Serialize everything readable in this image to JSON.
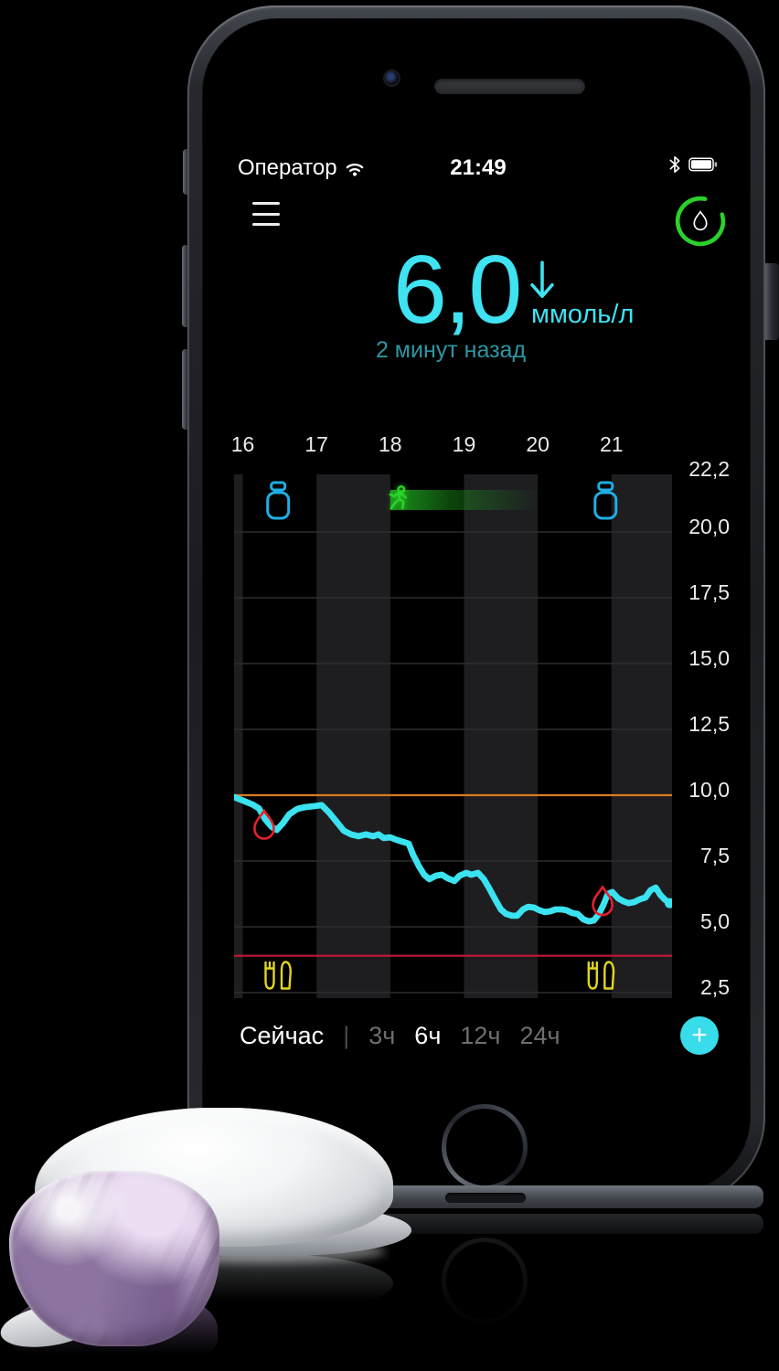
{
  "status_bar": {
    "carrier": "Оператор",
    "time": "21:49",
    "wifi_icon": "wifi-icon",
    "bluetooth_icon": "bluetooth-icon",
    "battery_icon": "battery-icon"
  },
  "header": {
    "menu_icon": "hamburger-menu-icon",
    "sensor_icon": "droplet-progress-icon",
    "sensor_progress_color": "#2BD12B"
  },
  "reading": {
    "value": "6,0",
    "unit": "ммоль/л",
    "trend": "down",
    "ago": "2 минут назад",
    "value_color": "#3FE3F2",
    "ago_color": "#2D96A3"
  },
  "chart_data": {
    "type": "line",
    "x_ticks": [
      "16",
      "17",
      "18",
      "19",
      "20",
      "21"
    ],
    "y_ticks": [
      "22,2",
      "20,0",
      "17,5",
      "15,0",
      "12,5",
      "10,0",
      "7,5",
      "5,0",
      "2,5"
    ],
    "xlim": [
      15.88,
      21.83
    ],
    "ylim": [
      2.2,
      22.2
    ],
    "grid": {
      "hlines": [
        20,
        17.5,
        15,
        12.5,
        7.5,
        5,
        2.5
      ],
      "shaded_columns": [
        [
          15.88,
          16
        ],
        [
          17,
          18
        ],
        [
          19,
          20
        ],
        [
          21,
          21.83
        ]
      ]
    },
    "high_limit": {
      "value": 10.0,
      "color": "#DD7A1E"
    },
    "low_limit": {
      "value": 3.9,
      "color": "#C2173B"
    },
    "series": [
      {
        "name": "glucose",
        "color": "#3BE2F0",
        "points": [
          [
            15.88,
            9.93
          ],
          [
            16.0,
            9.8
          ],
          [
            16.13,
            9.65
          ],
          [
            16.22,
            9.5
          ],
          [
            16.3,
            9.1
          ],
          [
            16.39,
            8.8
          ],
          [
            16.46,
            8.68
          ],
          [
            16.54,
            8.92
          ],
          [
            16.63,
            9.27
          ],
          [
            16.74,
            9.48
          ],
          [
            16.85,
            9.55
          ],
          [
            16.96,
            9.58
          ],
          [
            17.07,
            9.62
          ],
          [
            17.17,
            9.34
          ],
          [
            17.27,
            9.0
          ],
          [
            17.37,
            8.65
          ],
          [
            17.47,
            8.51
          ],
          [
            17.57,
            8.44
          ],
          [
            17.67,
            8.51
          ],
          [
            17.77,
            8.44
          ],
          [
            17.84,
            8.51
          ],
          [
            17.91,
            8.37
          ],
          [
            18.0,
            8.4
          ],
          [
            18.09,
            8.3
          ],
          [
            18.17,
            8.23
          ],
          [
            18.25,
            8.16
          ],
          [
            18.31,
            7.74
          ],
          [
            18.39,
            7.29
          ],
          [
            18.46,
            6.98
          ],
          [
            18.53,
            6.81
          ],
          [
            18.62,
            6.94
          ],
          [
            18.7,
            6.98
          ],
          [
            18.78,
            6.84
          ],
          [
            18.87,
            6.74
          ],
          [
            18.94,
            6.94
          ],
          [
            19.03,
            7.05
          ],
          [
            19.1,
            6.98
          ],
          [
            19.19,
            7.05
          ],
          [
            19.27,
            6.81
          ],
          [
            19.35,
            6.42
          ],
          [
            19.43,
            6.0
          ],
          [
            19.5,
            5.66
          ],
          [
            19.57,
            5.49
          ],
          [
            19.65,
            5.42
          ],
          [
            19.72,
            5.42
          ],
          [
            19.8,
            5.66
          ],
          [
            19.87,
            5.76
          ],
          [
            19.95,
            5.73
          ],
          [
            20.02,
            5.63
          ],
          [
            20.1,
            5.56
          ],
          [
            20.17,
            5.59
          ],
          [
            20.24,
            5.66
          ],
          [
            20.32,
            5.66
          ],
          [
            20.39,
            5.63
          ],
          [
            20.47,
            5.52
          ],
          [
            20.54,
            5.49
          ],
          [
            20.62,
            5.28
          ],
          [
            20.69,
            5.21
          ],
          [
            20.76,
            5.24
          ],
          [
            20.83,
            5.49
          ],
          [
            20.89,
            5.83
          ],
          [
            20.95,
            6.25
          ],
          [
            21.01,
            6.32
          ],
          [
            21.09,
            6.08
          ],
          [
            21.16,
            5.97
          ],
          [
            21.23,
            5.9
          ],
          [
            21.31,
            5.94
          ],
          [
            21.38,
            6.04
          ],
          [
            21.46,
            6.11
          ],
          [
            21.53,
            6.39
          ],
          [
            21.6,
            6.49
          ],
          [
            21.66,
            6.22
          ],
          [
            21.72,
            6.04
          ],
          [
            21.79,
            5.9
          ]
        ]
      }
    ],
    "calibrations": {
      "color": "#E6202E",
      "points": [
        [
          16.29,
          8.85
        ],
        [
          20.88,
          5.95
        ]
      ]
    },
    "events": {
      "insulin": {
        "icon": "insulin-vial-icon",
        "color": "#1FAEE4",
        "times": [
          16.48,
          20.92
        ]
      },
      "exercise": {
        "icon": "runner-icon",
        "color": "#2BD42B",
        "band_color": "#1FAE1F",
        "start": 18.0,
        "end": 20.0
      },
      "meals": {
        "icon": "fork-knife-icon",
        "color": "#E3D41F",
        "times": [
          16.49,
          20.87
        ]
      }
    }
  },
  "footer": {
    "now_label": "Сейчас",
    "divider": "|",
    "tabs": [
      {
        "key": "3h",
        "label": "3ч",
        "active": false
      },
      {
        "key": "6h",
        "label": "6ч",
        "active": true
      },
      {
        "key": "12h",
        "label": "12ч",
        "active": false
      },
      {
        "key": "24h",
        "label": "24ч",
        "active": false
      }
    ],
    "add_button": "+"
  }
}
